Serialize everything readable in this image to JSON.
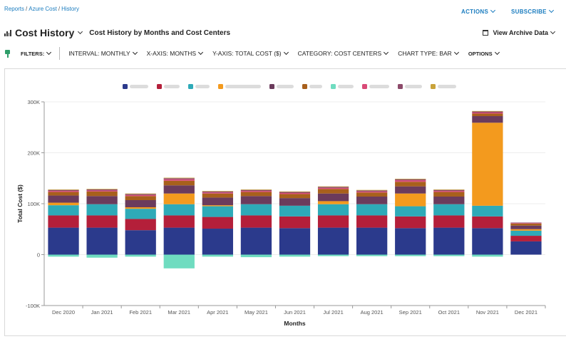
{
  "breadcrumb": {
    "items": [
      "Reports",
      "Azure Cost",
      "History"
    ],
    "sep": "/"
  },
  "header": {
    "actions_label": "ACTIONS",
    "subscribe_label": "SUBSCRIBE",
    "title": "Cost History",
    "subtitle": "Cost History by Months and Cost Centers",
    "archive_label": "View Archive Data"
  },
  "filters": {
    "filters_label": "FILTERS:",
    "interval": "INTERVAL:  MONTHLY",
    "xaxis": "X-AXIS:  MONTHS",
    "yaxis": "Y-AXIS:  TOTAL COST ($)",
    "category": "CATEGORY:  COST CENTERS",
    "chart_type": "CHART TYPE:  BAR",
    "options": "OPTIONS"
  },
  "colors": {
    "s1": "#2b3a8c",
    "s2": "#b41f3a",
    "s3": "#2eaab8",
    "s4": "#f39a1e",
    "s5": "#6b3b5c",
    "s6": "#a8601c",
    "s7": "#6fdcc0",
    "s8": "#d94a77",
    "s9": "#8c4a6a",
    "s10": "#c9a33a"
  },
  "chart_data": {
    "type": "bar",
    "stacked": true,
    "title": "",
    "xlabel": "Months",
    "ylabel": "Total Cost ($)",
    "ylim": [
      -100000,
      300000
    ],
    "yticks": [
      -100000,
      0,
      100000,
      200000,
      300000
    ],
    "ytick_labels": [
      "-100K",
      "0",
      "100K",
      "200K",
      "300K"
    ],
    "categories": [
      "Dec 2020",
      "Jan 2021",
      "Feb 2021",
      "Mar 2021",
      "Apr 2021",
      "May 2021",
      "Jun 2021",
      "Jul 2021",
      "Aug 2021",
      "Sep 2021",
      "Oct 2021",
      "Nov 2021",
      "Dec 2021"
    ],
    "series": [
      {
        "name": "",
        "color_key": "s1",
        "values": [
          53000,
          53000,
          48000,
          53000,
          51000,
          53000,
          52000,
          53000,
          53000,
          52000,
          53000,
          52000,
          26000
        ]
      },
      {
        "name": "",
        "color_key": "s2",
        "values": [
          24000,
          24000,
          22000,
          24000,
          23000,
          24000,
          23000,
          24000,
          24000,
          23000,
          24000,
          23000,
          11000
        ]
      },
      {
        "name": "",
        "color_key": "s3",
        "values": [
          20000,
          22000,
          20000,
          22000,
          21000,
          22000,
          21000,
          22000,
          22000,
          20000,
          22000,
          21000,
          10000
        ]
      },
      {
        "name": "",
        "color_key": "s4",
        "values": [
          5000,
          0,
          3000,
          21000,
          2000,
          0,
          0,
          6000,
          0,
          25000,
          0,
          163000,
          3000
        ]
      },
      {
        "name": "",
        "color_key": "s5",
        "values": [
          14000,
          16000,
          14000,
          16000,
          15000,
          16000,
          15000,
          15000,
          15000,
          14000,
          15000,
          13000,
          7000
        ]
      },
      {
        "name": "",
        "color_key": "s6",
        "values": [
          7000,
          9000,
          8000,
          9000,
          8000,
          8000,
          8000,
          9000,
          8000,
          9000,
          9000,
          5000,
          4000
        ]
      },
      {
        "name": "",
        "color_key": "s7",
        "values": [
          -4000,
          -6000,
          -4000,
          -27000,
          -4000,
          -5000,
          -4000,
          -3000,
          -3000,
          -3000,
          -3000,
          -4000,
          0
        ]
      },
      {
        "name": "",
        "color_key": "s8",
        "values": [
          2000,
          2000,
          2000,
          3000,
          2000,
          2000,
          2000,
          2000,
          2000,
          3000,
          2000,
          2000,
          1000
        ]
      },
      {
        "name": "",
        "color_key": "s9",
        "values": [
          2000,
          2000,
          2000,
          2000,
          2000,
          2000,
          2000,
          2000,
          2000,
          2000,
          2000,
          2000,
          1000
        ]
      },
      {
        "name": "",
        "color_key": "s10",
        "values": [
          1000,
          1000,
          1000,
          1000,
          1000,
          1000,
          1000,
          1000,
          1000,
          1000,
          1000,
          1000,
          0
        ]
      }
    ],
    "legend_position": "top-center"
  }
}
